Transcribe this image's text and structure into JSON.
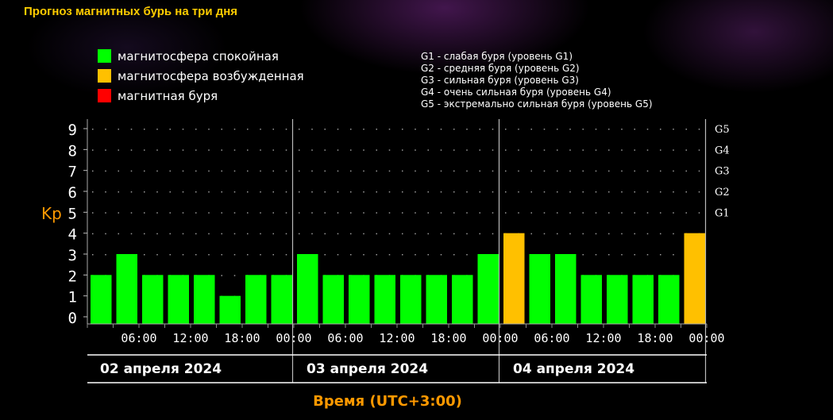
{
  "page": {
    "title": "Прогноз магнитных бурь на три дня"
  },
  "legend": [
    {
      "label": "магнитосфера спокойная",
      "color": "#00ff00"
    },
    {
      "label": "магнитосфера возбужденная",
      "color": "#ffc000"
    },
    {
      "label": "магнитная буря",
      "color": "#ff0000"
    }
  ],
  "storm_scale": [
    "G1 - слабая буря (уровень G1)",
    "G2 - средняя буря (уровень G2)",
    "G3 - сильная буря (уровень G3)",
    "G4 - очень сильная буря (уровень G4)",
    "G5 - экстремально сильная буря (уровень G5)"
  ],
  "colors": {
    "title": "#ffcc00",
    "axis_label": "#ff9900",
    "quiet": "#00ff00",
    "disturbed": "#ffc000",
    "storm": "#ff0000"
  },
  "chart_data": {
    "type": "bar",
    "ylabel": "Kp",
    "xlabel": "Время (UTC+3:00)",
    "ylim": [
      0,
      9
    ],
    "yticks": [
      "0",
      "1",
      "2",
      "3",
      "4",
      "5",
      "6",
      "7",
      "8",
      "9"
    ],
    "right_labels": [
      {
        "level": 5,
        "label": "G1"
      },
      {
        "level": 6,
        "label": "G2"
      },
      {
        "level": 7,
        "label": "G3"
      },
      {
        "level": 8,
        "label": "G4"
      },
      {
        "level": 9,
        "label": "G5"
      }
    ],
    "days": [
      "02 апреля 2024",
      "03 апреля 2024",
      "04 апреля 2024"
    ],
    "time_ticks": [
      "06:00",
      "12:00",
      "18:00",
      "00:00",
      "06:00",
      "12:00",
      "18:00",
      "00:00",
      "06:00",
      "12:00",
      "18:00",
      "00:00"
    ],
    "values": [
      2,
      3,
      2,
      2,
      2,
      1,
      2,
      2,
      3,
      2,
      2,
      2,
      2,
      2,
      2,
      3,
      4,
      3,
      3,
      2,
      2,
      2,
      2,
      4
    ],
    "status": [
      "quiet",
      "quiet",
      "quiet",
      "quiet",
      "quiet",
      "quiet",
      "quiet",
      "quiet",
      "quiet",
      "quiet",
      "quiet",
      "quiet",
      "quiet",
      "quiet",
      "quiet",
      "quiet",
      "disturbed",
      "quiet",
      "quiet",
      "quiet",
      "quiet",
      "quiet",
      "quiet",
      "disturbed"
    ],
    "grid": true
  }
}
